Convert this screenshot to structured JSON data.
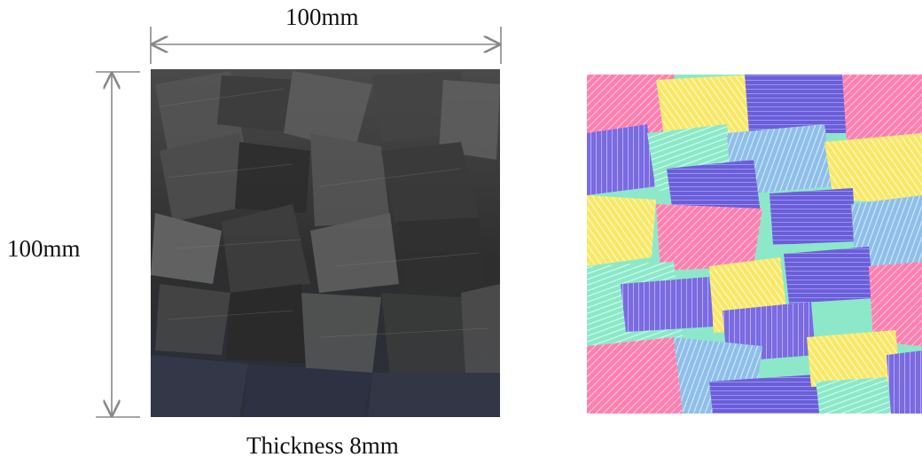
{
  "labels": {
    "width_dimension": "100mm",
    "height_dimension": "100mm",
    "thickness_caption": "Thickness 8mm"
  },
  "colors": {
    "dimension_line": "#888888",
    "photo_base": "#3a3a3a",
    "model_base": "#8de8c9"
  },
  "palette": [
    "#7a6be0",
    "#ff7fb0",
    "#f7e86a",
    "#8de8c9",
    "#8fbfe8",
    "#ff9a80"
  ]
}
